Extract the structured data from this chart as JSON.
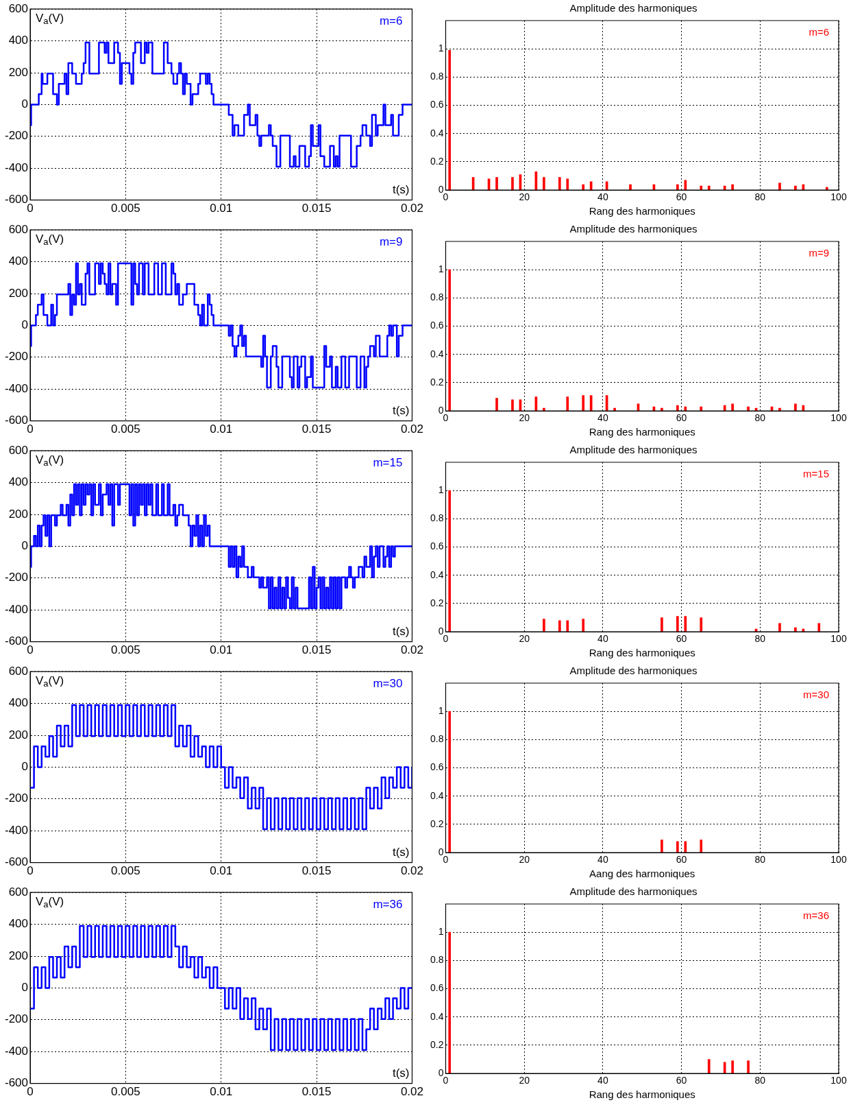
{
  "chart_data": [
    {
      "type": "step",
      "ylabel": "V$_{a}$(V)",
      "xlabel": "t(s)",
      "annotations": [
        "m=6"
      ],
      "xlim": [
        0,
        0.02
      ],
      "xticks": [
        0,
        0.005,
        0.01,
        0.015,
        0.02
      ],
      "ylim": [
        -600,
        600
      ],
      "yticks": [
        -600,
        -400,
        -200,
        0,
        200,
        400,
        600
      ],
      "grid": true,
      "series": [
        {
          "color": "#0000ff",
          "x": [
            0,
            5e-05,
            0.00045,
            0.0006,
            0.00065,
            0.0009,
            0.0012,
            0.0014,
            0.0015,
            0.0018,
            0.0019,
            0.002,
            0.0022,
            0.0024,
            0.0027,
            0.0028,
            0.0029,
            0.0031,
            0.0036,
            0.0039,
            0.004,
            0.0041,
            0.0044,
            0.0046,
            0.0047,
            0.0048,
            0.0052,
            0.0053,
            0.0054,
            0.0055,
            0.0058,
            0.006,
            0.0061,
            0.0062,
            0.0064,
            0.007,
            0.0072,
            0.0074,
            0.0075,
            0.0077,
            0.0078,
            0.0079,
            0.008,
            0.0081,
            0.0082,
            0.0084,
            0.0085,
            0.0088,
            0.0089,
            0.0092,
            0.0093,
            0.0094,
            0.0095,
            0.0096,
            0.0104,
            0.0106,
            0.0107,
            0.0109,
            0.0112,
            0.0114,
            0.0115,
            0.0118,
            0.0119,
            0.012,
            0.0121,
            0.0125,
            0.0126,
            0.0127,
            0.0129,
            0.0131,
            0.0136,
            0.0138,
            0.0139,
            0.0141,
            0.0144,
            0.0146,
            0.0147,
            0.0148,
            0.0151,
            0.0152,
            0.0154,
            0.0157,
            0.0159,
            0.016,
            0.0161,
            0.0162,
            0.0168,
            0.0171,
            0.0173,
            0.0174,
            0.0176,
            0.0178,
            0.0179,
            0.0181,
            0.0182,
            0.0185,
            0.0186,
            0.0189,
            0.019,
            0.0193,
            0.0195,
            0.02
          ],
          "values": [
            -130,
            0,
            65,
            195,
            130,
            195,
            65,
            0,
            130,
            195,
            65,
            260,
            195,
            130,
            195,
            260,
            390,
            195,
            390,
            325,
            390,
            260,
            390,
            325,
            130,
            260,
            195,
            130,
            325,
            390,
            260,
            390,
            325,
            390,
            195,
            390,
            260,
            195,
            130,
            195,
            260,
            195,
            65,
            195,
            130,
            0,
            65,
            130,
            195,
            130,
            195,
            130,
            65,
            0,
            -65,
            -195,
            -130,
            -195,
            -65,
            0,
            -130,
            -65,
            -195,
            -260,
            -195,
            -130,
            -195,
            -260,
            -390,
            -195,
            -390,
            -325,
            -390,
            -260,
            -390,
            -325,
            -130,
            -260,
            -130,
            -325,
            -390,
            -260,
            -390,
            -325,
            -390,
            -195,
            -390,
            -260,
            -195,
            -130,
            -195,
            -260,
            -65,
            -195,
            -130,
            0,
            -130,
            -65,
            -195,
            -65,
            0,
            0
          ]
        }
      ]
    },
    {
      "type": "bar",
      "title": "Amplitude des harmoniques",
      "xlabel": "Rang des harmoniques",
      "annotations": [
        "m=6"
      ],
      "xlim": [
        0,
        100
      ],
      "xticks": [
        0,
        20,
        40,
        60,
        80,
        100
      ],
      "ylim": [
        0,
        1.2
      ],
      "yticks": [
        0,
        0.2,
        0.4,
        0.6,
        0.8,
        1
      ],
      "grid": true,
      "series": [
        {
          "color": "#ff0000",
          "x": [
            1,
            7,
            11,
            13,
            17,
            19,
            23,
            25,
            29,
            31,
            35,
            37,
            41,
            47,
            53,
            59,
            61,
            65,
            67,
            71,
            73,
            85,
            89,
            91,
            97
          ],
          "values": [
            0.99,
            0.09,
            0.08,
            0.09,
            0.09,
            0.11,
            0.13,
            0.09,
            0.09,
            0.08,
            0.04,
            0.06,
            0.06,
            0.04,
            0.04,
            0.04,
            0.07,
            0.03,
            0.03,
            0.03,
            0.04,
            0.05,
            0.03,
            0.04,
            0.02
          ]
        }
      ]
    },
    {
      "type": "step",
      "ylabel": "V$_{a}$(V)",
      "xlabel": "t(s)",
      "annotations": [
        "m=9"
      ],
      "xlim": [
        0,
        0.02
      ],
      "xticks": [
        0,
        0.005,
        0.01,
        0.015,
        0.02
      ],
      "ylim": [
        -600,
        600
      ],
      "yticks": [
        -600,
        -400,
        -200,
        0,
        200,
        400,
        600
      ],
      "grid": true,
      "series": [
        {
          "color": "#0000ff",
          "x": [
            0,
            5e-05,
            0.0003,
            0.0004,
            0.0006,
            0.0007,
            0.0009,
            0.0011,
            0.0012,
            0.0013,
            0.0014,
            0.002,
            0.0021,
            0.0022,
            0.0023,
            0.0024,
            0.0025,
            0.0026,
            0.0027,
            0.0029,
            0.003,
            0.0031,
            0.0034,
            0.0036,
            0.0037,
            0.0038,
            0.0039,
            0.004,
            0.0041,
            0.0042,
            0.0043,
            0.0045,
            0.0046,
            0.0053,
            0.0054,
            0.0055,
            0.0056,
            0.0057,
            0.0059,
            0.006,
            0.0062,
            0.0065,
            0.0067,
            0.0069,
            0.0071,
            0.0074,
            0.0075,
            0.0076,
            0.0077,
            0.0078,
            0.008,
            0.0082,
            0.0086,
            0.0088,
            0.0089,
            0.009,
            0.0091,
            0.0093,
            0.0094,
            0.0095,
            0.0096,
            0.0104,
            0.0105,
            0.0106,
            0.0107,
            0.0108,
            0.0109,
            0.011,
            0.0111,
            0.0112,
            0.0113,
            0.0121,
            0.0122,
            0.0123,
            0.0124,
            0.0126,
            0.0127,
            0.0129,
            0.013,
            0.0132,
            0.0136,
            0.0137,
            0.0138,
            0.014,
            0.0141,
            0.0142,
            0.0144,
            0.0145,
            0.0147,
            0.0148,
            0.0154,
            0.0155,
            0.0157,
            0.0158,
            0.016,
            0.0161,
            0.0163,
            0.0165,
            0.0167,
            0.0171,
            0.0173,
            0.0175,
            0.0176,
            0.0177,
            0.0178,
            0.018,
            0.0181,
            0.0183,
            0.0187,
            0.0188,
            0.0189,
            0.019,
            0.0192,
            0.0193,
            0.0195,
            0.02
          ],
          "values": [
            -130,
            0,
            65,
            130,
            195,
            65,
            0,
            130,
            0,
            65,
            195,
            260,
            65,
            195,
            130,
            390,
            195,
            260,
            130,
            325,
            390,
            195,
            390,
            260,
            390,
            325,
            260,
            195,
            390,
            195,
            260,
            130,
            390,
            130,
            390,
            260,
            195,
            390,
            195,
            390,
            195,
            390,
            195,
            390,
            195,
            390,
            325,
            195,
            260,
            130,
            195,
            260,
            130,
            65,
            0,
            130,
            0,
            195,
            130,
            65,
            0,
            -65,
            0,
            -130,
            -195,
            -130,
            -65,
            0,
            -130,
            -65,
            -195,
            -260,
            -65,
            -195,
            -390,
            -195,
            -130,
            -260,
            -390,
            -195,
            -325,
            -390,
            -195,
            -390,
            -260,
            -195,
            -390,
            -325,
            -195,
            -390,
            -130,
            -260,
            -195,
            -390,
            -260,
            -390,
            -195,
            -390,
            -195,
            -390,
            -195,
            -390,
            -260,
            -195,
            -130,
            -195,
            -65,
            -195,
            -65,
            0,
            -65,
            0,
            -195,
            -65,
            0,
            0
          ]
        }
      ]
    },
    {
      "type": "bar",
      "title": "Amplitude des harmoniques",
      "xlabel": "Rang des harmoniques",
      "annotations": [
        "m=9"
      ],
      "xlim": [
        0,
        100
      ],
      "xticks": [
        0,
        20,
        40,
        60,
        80,
        100
      ],
      "ylim": [
        0,
        1.2
      ],
      "yticks": [
        0,
        0.2,
        0.4,
        0.6,
        0.8,
        1
      ],
      "grid": true,
      "series": [
        {
          "color": "#ff0000",
          "x": [
            1,
            13,
            17,
            19,
            23,
            25,
            31,
            35,
            37,
            41,
            43,
            49,
            53,
            55,
            59,
            61,
            65,
            71,
            73,
            77,
            79,
            83,
            85,
            89,
            91
          ],
          "values": [
            1,
            0.09,
            0.08,
            0.08,
            0.1,
            0.02,
            0.1,
            0.11,
            0.11,
            0.11,
            0.02,
            0.05,
            0.03,
            0.02,
            0.04,
            0.03,
            0.03,
            0.04,
            0.05,
            0.03,
            0.02,
            0.03,
            0.02,
            0.05,
            0.04
          ]
        }
      ]
    },
    {
      "type": "step",
      "ylabel": "V$_{a}$(V)",
      "xlabel": "t(s)",
      "annotations": [
        "m=15"
      ],
      "xlim": [
        0,
        0.02
      ],
      "xticks": [
        0,
        0.005,
        0.01,
        0.015,
        0.02
      ],
      "ylim": [
        -600,
        600
      ],
      "yticks": [
        -600,
        -400,
        -200,
        0,
        200,
        400,
        600
      ],
      "grid": true,
      "series": [
        {
          "color": "#0000ff",
          "x": [
            0,
            5e-05,
            0.0002,
            0.0003,
            0.0004,
            0.0005,
            0.0006,
            0.0007,
            0.0008,
            0.0009,
            0.001,
            0.0011,
            0.0013,
            0.0014,
            0.0016,
            0.0017,
            0.0019,
            0.002,
            0.0021,
            0.0022,
            0.0023,
            0.0024,
            0.0025,
            0.0026,
            0.0027,
            0.0028,
            0.0029,
            0.003,
            0.0031,
            0.0032,
            0.0033,
            0.0034,
            0.0036,
            0.0037,
            0.0038,
            0.004,
            0.0041,
            0.0042,
            0.0043,
            0.0044,
            0.0046,
            0.0047,
            0.0052,
            0.0053,
            0.0054,
            0.0055,
            0.0056,
            0.0057,
            0.0058,
            0.0059,
            0.006,
            0.0061,
            0.0062,
            0.0063,
            0.0064,
            0.0066,
            0.0067,
            0.0069,
            0.007,
            0.0072,
            0.0073,
            0.0075,
            0.0076,
            0.0077,
            0.0078,
            0.008,
            0.0083,
            0.0084,
            0.0085,
            0.0086,
            0.0087,
            0.0088,
            0.0089,
            0.009,
            0.0091,
            0.0092,
            0.0093,
            0.0094,
            0.0104,
            0.0105,
            0.0106,
            0.0107,
            0.0108,
            0.0109,
            0.011,
            0.0111,
            0.0112,
            0.0114,
            0.0116,
            0.0117,
            0.012,
            0.0121,
            0.0122,
            0.0124,
            0.0125,
            0.0126,
            0.0127,
            0.0128,
            0.0129,
            0.013,
            0.0131,
            0.0132,
            0.0133,
            0.0134,
            0.0135,
            0.0136,
            0.0137,
            0.0138,
            0.0139,
            0.014,
            0.0146,
            0.0147,
            0.0148,
            0.0149,
            0.015,
            0.0151,
            0.0152,
            0.0153,
            0.0154,
            0.0155,
            0.0156,
            0.0157,
            0.0158,
            0.0159,
            0.016,
            0.0161,
            0.0162,
            0.0163,
            0.0165,
            0.0166,
            0.0167,
            0.0168,
            0.0169,
            0.017,
            0.0172,
            0.0174,
            0.0175,
            0.0176,
            0.0178,
            0.0179,
            0.018,
            0.0181,
            0.0182,
            0.0183,
            0.0185,
            0.0186,
            0.0187,
            0.0188,
            0.0189,
            0.019,
            0.0191,
            0.02
          ],
          "values": [
            -130,
            0,
            65,
            0,
            130,
            0,
            130,
            195,
            65,
            195,
            0,
            195,
            130,
            195,
            260,
            195,
            260,
            130,
            325,
            195,
            390,
            260,
            390,
            195,
            390,
            260,
            390,
            325,
            390,
            195,
            390,
            260,
            390,
            195,
            325,
            390,
            260,
            390,
            130,
            390,
            260,
            390,
            195,
            390,
            130,
            390,
            195,
            390,
            260,
            390,
            195,
            390,
            260,
            390,
            195,
            390,
            195,
            390,
            195,
            390,
            195,
            260,
            130,
            195,
            260,
            195,
            130,
            0,
            130,
            65,
            195,
            0,
            130,
            0,
            195,
            65,
            130,
            0,
            -130,
            0,
            -130,
            0,
            -195,
            -65,
            -130,
            0,
            -130,
            -195,
            -130,
            -195,
            -260,
            -195,
            -260,
            -195,
            -390,
            -195,
            -390,
            -260,
            -390,
            -195,
            -390,
            -260,
            -390,
            -195,
            -325,
            -390,
            -195,
            -390,
            -260,
            -390,
            -195,
            -390,
            -130,
            -390,
            -260,
            -195,
            -390,
            -195,
            -390,
            -260,
            -390,
            -195,
            -390,
            -195,
            -390,
            -195,
            -390,
            -195,
            -260,
            -195,
            -130,
            -195,
            -260,
            -195,
            -130,
            -195,
            -65,
            -130,
            0,
            -195,
            -65,
            0,
            -130,
            0,
            -130,
            -65,
            0,
            -130,
            0,
            -65,
            0,
            0
          ]
        }
      ]
    },
    {
      "type": "bar",
      "title": "Amplitude des harmoniques",
      "xlabel": "Rang des harmoniques",
      "annotations": [
        "m=15"
      ],
      "xlim": [
        0,
        100
      ],
      "xticks": [
        0,
        20,
        40,
        60,
        80,
        100
      ],
      "ylim": [
        0,
        1.2
      ],
      "yticks": [
        0,
        0.2,
        0.4,
        0.6,
        0.8,
        1
      ],
      "grid": true,
      "series": [
        {
          "color": "#ff0000",
          "x": [
            1,
            25,
            29,
            31,
            35,
            55,
            59,
            61,
            65,
            79,
            85,
            89,
            91,
            95
          ],
          "values": [
            1,
            0.09,
            0.08,
            0.08,
            0.09,
            0.1,
            0.11,
            0.11,
            0.1,
            0.02,
            0.06,
            0.03,
            0.02,
            0.06
          ]
        }
      ]
    },
    {
      "type": "step",
      "ylabel": "V$_{a}$(V)",
      "xlabel": "t(s)",
      "annotations": [
        "m=30"
      ],
      "xlim": [
        0,
        0.02
      ],
      "xticks": [
        0,
        0.005,
        0.01,
        0.015,
        0.02
      ],
      "ylim": [
        -600,
        600
      ],
      "yticks": [
        -600,
        -400,
        -200,
        0,
        200,
        400,
        600
      ],
      "grid": true,
      "series": [
        {
          "color": "#0000ff",
          "x": [
            0,
            0.0002,
            0.0004,
            0.0006,
            0.0008,
            0.001,
            0.0012,
            0.0014,
            0.0016,
            0.0018,
            0.002,
            0.0022,
            0.0024,
            0.0026,
            0.0028,
            0.003,
            0.0032,
            0.0034,
            0.0036,
            0.0038,
            0.004,
            0.0042,
            0.0044,
            0.0046,
            0.0048,
            0.005,
            0.0052,
            0.0054,
            0.0056,
            0.0058,
            0.006,
            0.0062,
            0.0064,
            0.0066,
            0.0068,
            0.007,
            0.0072,
            0.0074,
            0.0076,
            0.0078,
            0.008,
            0.0082,
            0.0084,
            0.0086,
            0.0088,
            0.009,
            0.0092,
            0.0094,
            0.0096,
            0.0098,
            0.01,
            0.0102,
            0.0104,
            0.0106,
            0.0108,
            0.011,
            0.0112,
            0.0114,
            0.0116,
            0.0118,
            0.012,
            0.0122,
            0.0124,
            0.0126,
            0.0128,
            0.013,
            0.0132,
            0.0134,
            0.0136,
            0.0138,
            0.014,
            0.0142,
            0.0144,
            0.0146,
            0.0148,
            0.015,
            0.0152,
            0.0154,
            0.0156,
            0.0158,
            0.016,
            0.0162,
            0.0164,
            0.0166,
            0.0168,
            0.017,
            0.0172,
            0.0174,
            0.0176,
            0.0178,
            0.018,
            0.0182,
            0.0184,
            0.0186,
            0.0188,
            0.019,
            0.0192,
            0.0194,
            0.0196,
            0.0198,
            0.02
          ],
          "values": [
            -130,
            130,
            0,
            130,
            65,
            195,
            65,
            260,
            130,
            260,
            130,
            390,
            195,
            390,
            195,
            390,
            195,
            390,
            195,
            390,
            195,
            390,
            195,
            390,
            195,
            390,
            195,
            390,
            195,
            390,
            195,
            390,
            195,
            390,
            195,
            390,
            195,
            390,
            130,
            260,
            130,
            260,
            65,
            195,
            65,
            130,
            0,
            130,
            0,
            130,
            0,
            -130,
            0,
            -130,
            -65,
            -195,
            -65,
            -260,
            -130,
            -260,
            -130,
            -390,
            -195,
            -390,
            -195,
            -390,
            -195,
            -390,
            -195,
            -390,
            -195,
            -390,
            -195,
            -390,
            -195,
            -390,
            -195,
            -390,
            -195,
            -390,
            -195,
            -390,
            -195,
            -390,
            -195,
            -390,
            -195,
            -390,
            -130,
            -260,
            -130,
            -260,
            -65,
            -195,
            -65,
            -130,
            0,
            -130,
            0,
            -130,
            0
          ]
        }
      ]
    },
    {
      "type": "bar",
      "title": "Amplitude des harmoniques",
      "xlabel": "Aang des harmoniques",
      "annotations": [
        "m=30"
      ],
      "xlim": [
        0,
        100
      ],
      "xticks": [
        0,
        20,
        40,
        60,
        80,
        100
      ],
      "ylim": [
        0,
        1.2
      ],
      "yticks": [
        0,
        0.2,
        0.4,
        0.6,
        0.8,
        1
      ],
      "grid": true,
      "series": [
        {
          "color": "#ff0000",
          "x": [
            1,
            55,
            59,
            61,
            65
          ],
          "values": [
            1,
            0.09,
            0.08,
            0.08,
            0.09
          ]
        }
      ]
    },
    {
      "type": "step",
      "ylabel": "V$_{a}$(V)",
      "xlabel": "t(s)",
      "annotations": [
        "m=36"
      ],
      "xlim": [
        0,
        0.02
      ],
      "xticks": [
        0,
        0.005,
        0.01,
        0.015,
        0.02
      ],
      "ylim": [
        -600,
        600
      ],
      "yticks": [
        -600,
        -400,
        -200,
        0,
        200,
        400,
        600
      ],
      "grid": true,
      "series": [
        {
          "color": "#0000ff",
          "x": [
            0,
            0.0002,
            0.0004,
            0.0006,
            0.0008,
            0.001,
            0.0012,
            0.0014,
            0.0016,
            0.0018,
            0.002,
            0.0022,
            0.0024,
            0.0026,
            0.0028,
            0.003,
            0.0032,
            0.0034,
            0.0036,
            0.0038,
            0.004,
            0.0042,
            0.0044,
            0.0046,
            0.0048,
            0.005,
            0.0052,
            0.0054,
            0.0056,
            0.0058,
            0.006,
            0.0062,
            0.0064,
            0.0066,
            0.0068,
            0.007,
            0.0072,
            0.0074,
            0.0076,
            0.0078,
            0.008,
            0.0082,
            0.0084,
            0.0086,
            0.0088,
            0.009,
            0.0092,
            0.0094,
            0.0096,
            0.0098,
            0.01,
            0.0102,
            0.0104,
            0.0106,
            0.0108,
            0.011,
            0.0112,
            0.0114,
            0.0116,
            0.0118,
            0.012,
            0.0122,
            0.0124,
            0.0126,
            0.0128,
            0.013,
            0.0132,
            0.0134,
            0.0136,
            0.0138,
            0.014,
            0.0142,
            0.0144,
            0.0146,
            0.0148,
            0.015,
            0.0152,
            0.0154,
            0.0156,
            0.0158,
            0.016,
            0.0162,
            0.0164,
            0.0166,
            0.0168,
            0.017,
            0.0172,
            0.0174,
            0.0176,
            0.0178,
            0.018,
            0.0182,
            0.0184,
            0.0186,
            0.0188,
            0.019,
            0.0192,
            0.0194,
            0.0196,
            0.0198,
            0.02
          ],
          "values": [
            -130,
            130,
            0,
            130,
            0,
            195,
            65,
            195,
            65,
            260,
            130,
            260,
            130,
            390,
            195,
            390,
            195,
            390,
            195,
            390,
            195,
            390,
            195,
            390,
            195,
            390,
            195,
            390,
            195,
            390,
            195,
            390,
            195,
            390,
            195,
            390,
            195,
            390,
            260,
            130,
            260,
            130,
            195,
            65,
            195,
            65,
            130,
            0,
            130,
            0,
            0,
            -130,
            0,
            -130,
            0,
            -195,
            -65,
            -195,
            -65,
            -260,
            -130,
            -260,
            -130,
            -390,
            -195,
            -390,
            -195,
            -390,
            -195,
            -390,
            -195,
            -390,
            -195,
            -390,
            -195,
            -390,
            -195,
            -390,
            -195,
            -390,
            -195,
            -390,
            -195,
            -390,
            -195,
            -390,
            -195,
            -390,
            -260,
            -130,
            -260,
            -130,
            -195,
            -65,
            -195,
            -65,
            -130,
            0,
            -130,
            0,
            0
          ]
        }
      ]
    },
    {
      "type": "bar",
      "title": "Amplitude des harmoniques",
      "xlabel": "Rang des harmoniques",
      "annotations": [
        "m=36"
      ],
      "xlim": [
        0,
        100
      ],
      "xticks": [
        0,
        20,
        40,
        60,
        80,
        100
      ],
      "ylim": [
        0,
        1.2
      ],
      "yticks": [
        0,
        0.2,
        0.4,
        0.6,
        0.8,
        1
      ],
      "grid": true,
      "series": [
        {
          "color": "#ff0000",
          "x": [
            1,
            67,
            71,
            73,
            77
          ],
          "values": [
            1,
            0.1,
            0.08,
            0.09,
            0.09
          ]
        }
      ]
    }
  ]
}
